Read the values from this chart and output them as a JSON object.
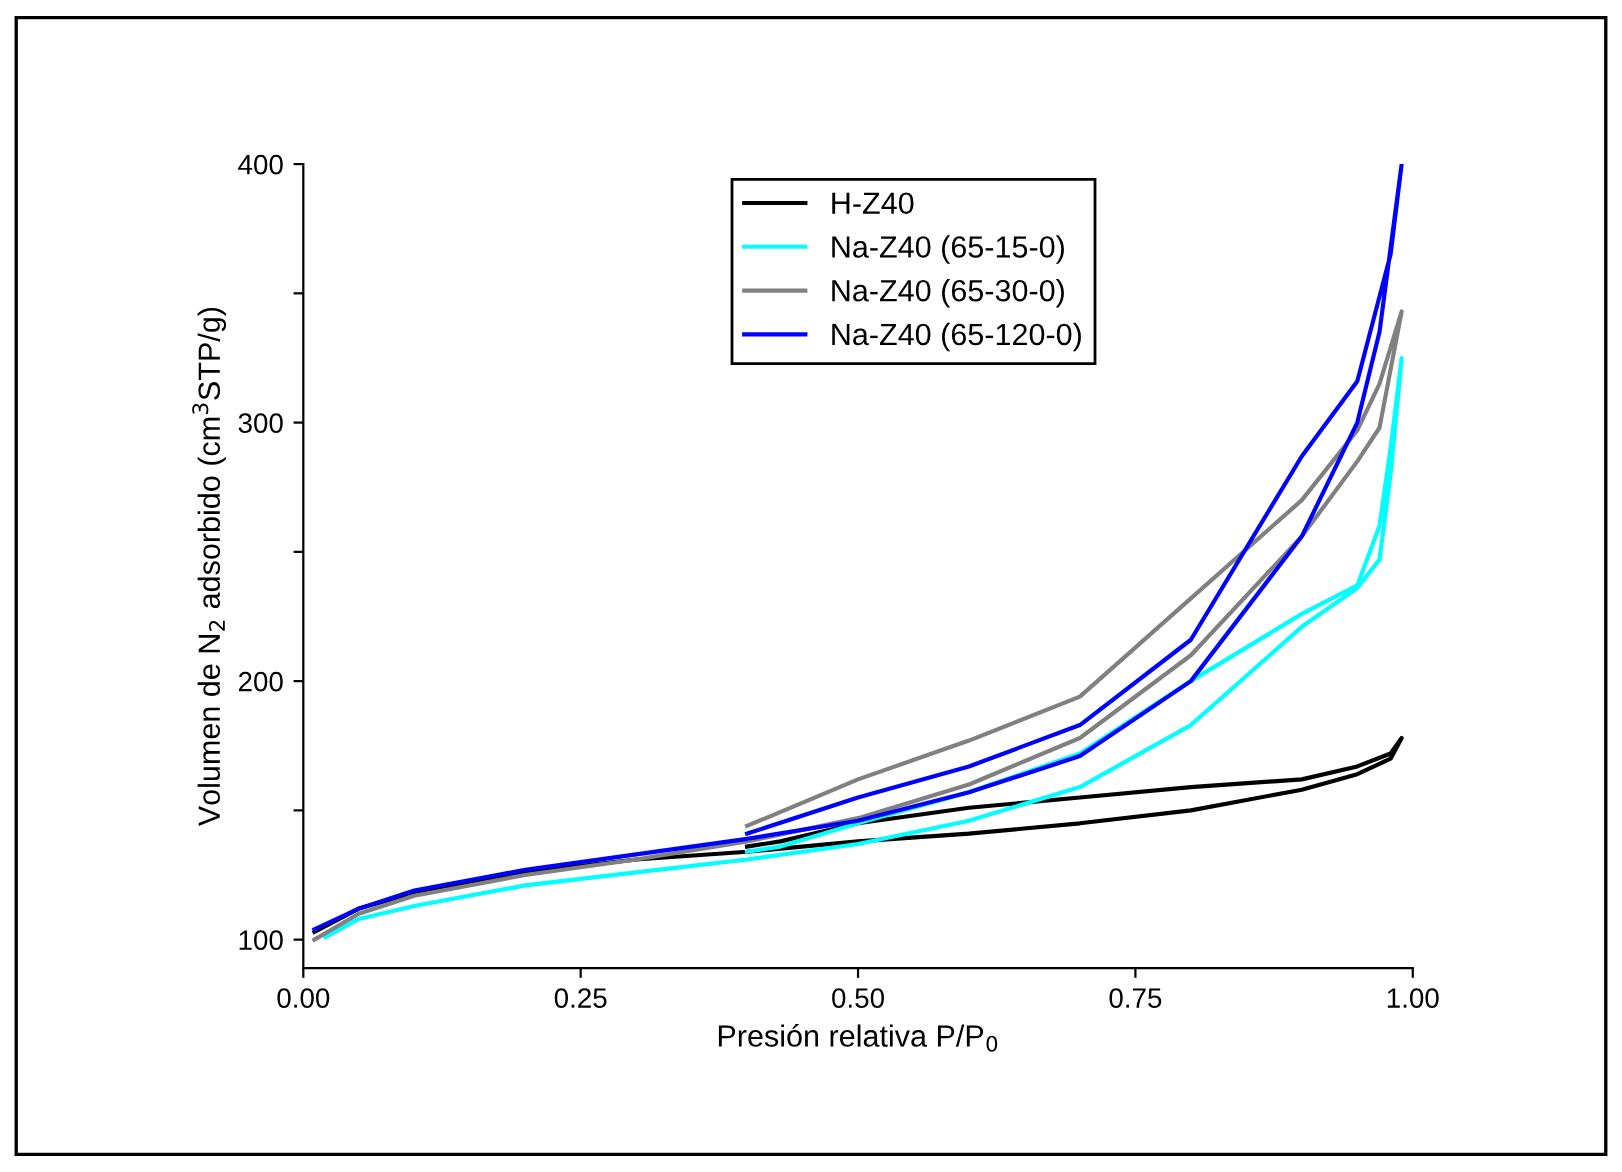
{
  "chart_data": {
    "type": "line",
    "xlabel": "Presión relativa P/P$_{0}$",
    "ylabel": "Volumen de N$_{2}$ adsorbido (cm$^{3}$STP/g)",
    "xlim": [
      0,
      1.0
    ],
    "ylim": [
      89,
      400
    ],
    "xticks": [
      {
        "value": 0,
        "label": "0.00"
      },
      {
        "value": 0.25,
        "label": "0.25"
      },
      {
        "value": 0.5,
        "label": "0.50"
      },
      {
        "value": 0.75,
        "label": "0.75"
      },
      {
        "value": 1.0,
        "label": "1.00"
      }
    ],
    "yticks": [
      100,
      {
        "value": 150,
        "label": null
      },
      200,
      {
        "value": 250,
        "label": null
      },
      300,
      {
        "value": 350,
        "label": null
      },
      400
    ],
    "grid": false,
    "legend": "top",
    "marker": "none",
    "line_style": "solid",
    "series": [
      {
        "name": "H-Z40",
        "color": "#000000",
        "x": [
          0.01,
          0.05,
          0.1,
          0.2,
          0.3,
          0.4,
          0.5,
          0.6,
          0.7,
          0.8,
          0.9,
          0.95,
          0.98,
          0.99,
          0.98,
          0.95,
          0.9,
          0.8,
          0.7,
          0.6,
          0.5,
          0.43,
          0.4
        ],
        "values": [
          103,
          112,
          118,
          126,
          131,
          134,
          138,
          141,
          145,
          150,
          158,
          164,
          170,
          178,
          172,
          167,
          162,
          159,
          155,
          151,
          145,
          138,
          136
        ]
      },
      {
        "name": "Na-Z40 (65-15-0)",
        "color": "#00ffff",
        "x": [
          0.02,
          0.05,
          0.1,
          0.2,
          0.3,
          0.4,
          0.5,
          0.6,
          0.7,
          0.8,
          0.9,
          0.95,
          0.97,
          0.98,
          0.99,
          0.98,
          0.97,
          0.95,
          0.9,
          0.8,
          0.7,
          0.6,
          0.5,
          0.43,
          0.4
        ],
        "values": [
          101,
          108,
          113,
          121,
          126,
          131,
          137,
          146,
          159,
          183,
          221,
          236,
          247,
          280,
          325,
          290,
          260,
          237,
          226,
          200,
          172,
          157,
          145,
          136,
          134
        ]
      },
      {
        "name": "Na-Z40 (65-30-0)",
        "color": "#808080",
        "x": [
          0.01,
          0.05,
          0.1,
          0.2,
          0.3,
          0.4,
          0.5,
          0.6,
          0.7,
          0.8,
          0.9,
          0.95,
          0.97,
          0.99,
          0.97,
          0.95,
          0.9,
          0.8,
          0.7,
          0.6,
          0.5,
          0.4
        ],
        "values": [
          100,
          110,
          117,
          125,
          131,
          138,
          147,
          160,
          178,
          210,
          256,
          285,
          298,
          343,
          315,
          297,
          270,
          232,
          194,
          177,
          162,
          144
        ]
      },
      {
        "name": "Na-Z40 (65-120-0)",
        "color": "#0000ff",
        "x": [
          0.01,
          0.05,
          0.1,
          0.2,
          0.3,
          0.4,
          0.5,
          0.6,
          0.7,
          0.8,
          0.9,
          0.95,
          0.97,
          0.99,
          0.98,
          0.95,
          0.9,
          0.8,
          0.7,
          0.6,
          0.5,
          0.4
        ],
        "values": [
          104,
          112,
          119,
          127,
          133,
          139,
          146,
          157,
          171,
          200,
          256,
          300,
          335,
          400,
          365,
          316,
          287,
          216,
          183,
          167,
          155,
          141
        ]
      }
    ]
  }
}
